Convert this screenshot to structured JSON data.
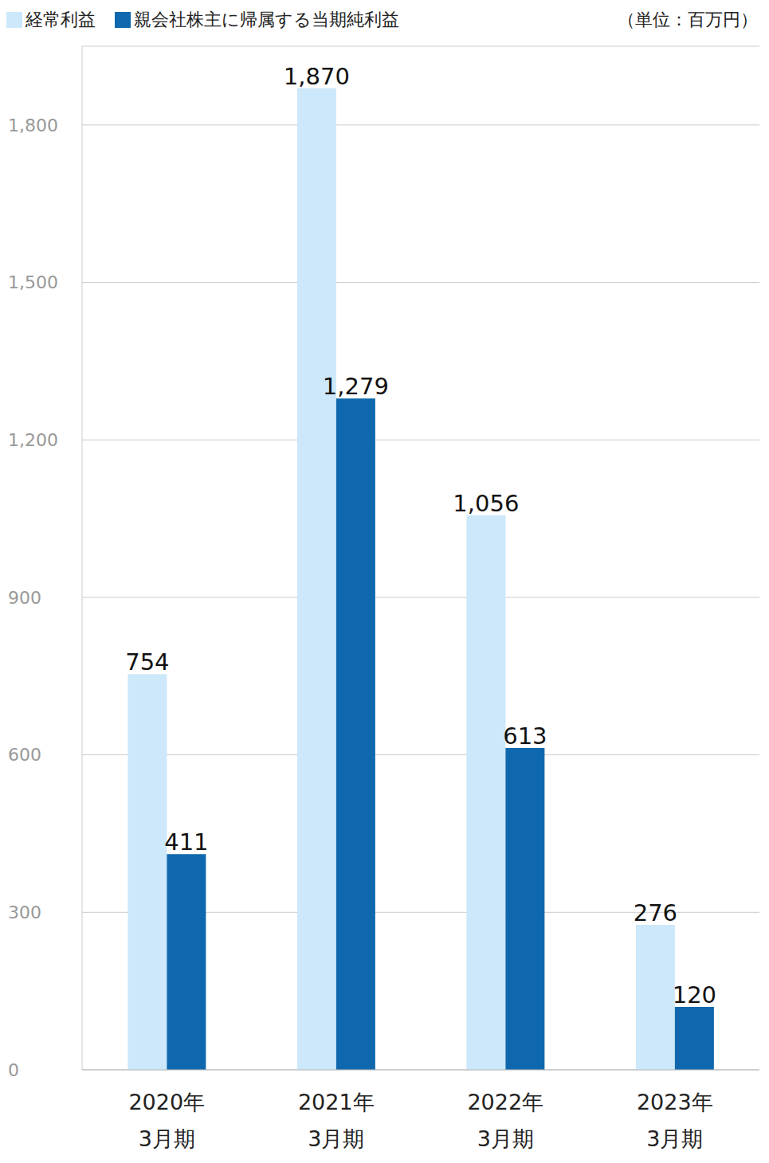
{
  "chart_data": {
    "type": "bar",
    "y_label": "（単位：百万円）",
    "categories": [
      "2020年\n3月期",
      "2021年\n3月期",
      "2022年\n3月期",
      "2023年\n3月期"
    ],
    "series": [
      {
        "name": "経常利益",
        "color": "#cce8fa",
        "values": [
          754,
          1870,
          1056,
          276
        ],
        "value_labels": [
          "754",
          "1,870",
          "1,056",
          "276"
        ]
      },
      {
        "name": "親会社株主に帰属する当期純利益",
        "color": "#0f68ad",
        "values": [
          411,
          1279,
          613,
          120
        ],
        "value_labels": [
          "411",
          "1,279",
          "613",
          "120"
        ]
      }
    ],
    "ylim": [
      0,
      1950
    ],
    "yticks": [
      0,
      300,
      600,
      900,
      {
        "value": 1200,
        "label": "1,200"
      },
      {
        "value": 1500,
        "label": "1,500"
      },
      {
        "value": 1800,
        "label": "1,800"
      }
    ],
    "grid": true,
    "legend": "top-left",
    "data_labels": true
  }
}
